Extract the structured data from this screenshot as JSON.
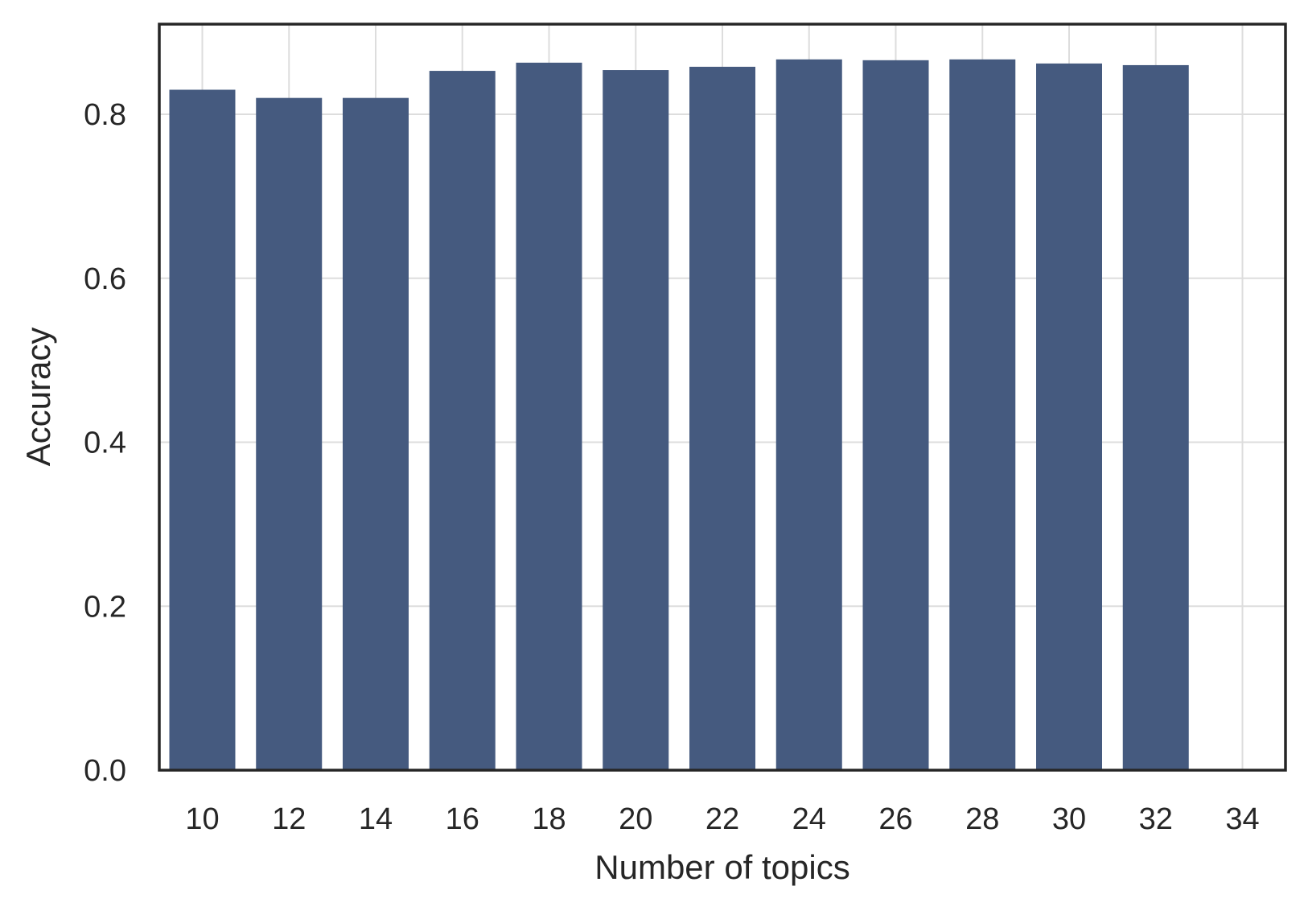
{
  "chart_data": {
    "type": "bar",
    "title": "",
    "xlabel": "Number of topics",
    "ylabel": "Accuracy",
    "categories": [
      "10",
      "12",
      "14",
      "16",
      "18",
      "20",
      "22",
      "24",
      "26",
      "28",
      "30",
      "32",
      "34"
    ],
    "values": [
      0.83,
      0.82,
      0.82,
      0.853,
      0.863,
      0.854,
      0.858,
      0.867,
      0.866,
      0.867,
      0.862,
      0.86,
      null
    ],
    "ylim": [
      0.0,
      0.91
    ],
    "yticks": [
      0.0,
      0.2,
      0.4,
      0.6,
      0.8
    ],
    "ytick_labels": [
      "0.0",
      "0.2",
      "0.4",
      "0.6",
      "0.8"
    ],
    "grid": true,
    "bar_color": "#455a7f",
    "grid_color": "#dddddd",
    "frame_color": "#262626"
  }
}
